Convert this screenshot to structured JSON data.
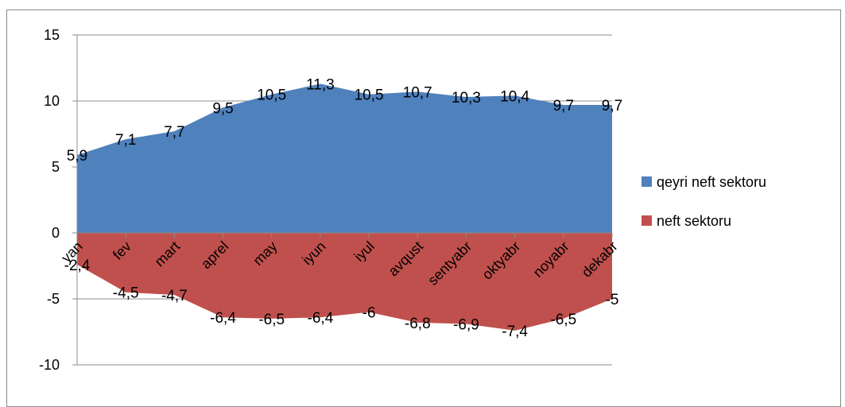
{
  "chart_data": {
    "type": "area",
    "categories": [
      "yan",
      "fev",
      "mart",
      "aprel",
      "may",
      "iyun",
      "iyul",
      "avqust",
      "sentyabr",
      "oktyabr",
      "noyabr",
      "dekabr"
    ],
    "series": [
      {
        "name": "qeyri neft sektoru",
        "color": "#4F81BD",
        "values": [
          5.9,
          7.1,
          7.7,
          9.5,
          10.5,
          11.3,
          10.5,
          10.7,
          10.3,
          10.4,
          9.7,
          9.7
        ],
        "labels": [
          "5,9",
          "7,1",
          "7,7",
          "9,5",
          "10,5",
          "11,3",
          "10,5",
          "10,7",
          "10,3",
          "10,4",
          "9,7",
          "9,7"
        ]
      },
      {
        "name": "neft sektoru",
        "color": "#C0504D",
        "values": [
          -2.4,
          -4.5,
          -4.7,
          -6.4,
          -6.5,
          -6.4,
          -6,
          -6.8,
          -6.9,
          -7.4,
          -6.5,
          -5
        ],
        "labels": [
          "-2,4",
          "-4,5",
          "-4,7",
          "-6,4",
          "-6,5",
          "-6,4",
          "-6",
          "-6,8",
          "-6,9",
          "-7,4",
          "-6,5",
          "-5"
        ]
      }
    ],
    "yticks": [
      "15",
      "10",
      "5",
      "0",
      "-5",
      "-10"
    ],
    "ylim": [
      -10,
      15
    ],
    "legend_position": "right",
    "gridlines": true
  }
}
